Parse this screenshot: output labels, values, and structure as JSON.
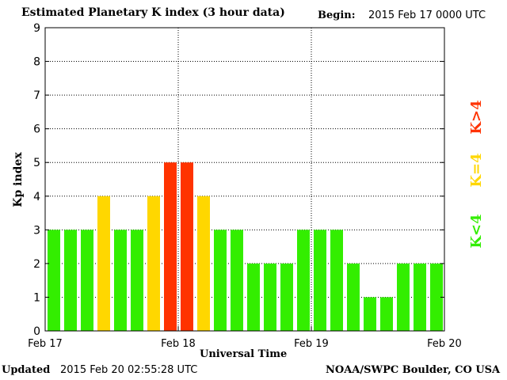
{
  "header": {
    "title": "Estimated Planetary K index (3 hour data)",
    "begin_label": "Begin:",
    "begin_value": "2015 Feb 17 0000 UTC"
  },
  "footer": {
    "updated_label": "Updated",
    "updated_value": "2015 Feb 20 02:55:28 UTC",
    "credit": "NOAA/SWPC Boulder, CO USA"
  },
  "legend": [
    {
      "label": "K>4",
      "color": "#ff3300"
    },
    {
      "label": "K=4",
      "color": "#ffd700"
    },
    {
      "label": "K<4",
      "color": "#33ee00"
    }
  ],
  "chart_data": {
    "type": "bar",
    "title": "Estimated Planetary K index (3 hour data)",
    "xlabel": "Universal Time",
    "ylabel": "Kp index",
    "ylim": [
      0,
      9
    ],
    "yticks": [
      0,
      1,
      2,
      3,
      4,
      5,
      6,
      7,
      8,
      9
    ],
    "xtick_labels": [
      "Feb 17",
      "Feb 18",
      "Feb 19",
      "Feb 20"
    ],
    "grid": true,
    "values": [
      3,
      3,
      3,
      4,
      3,
      3,
      4,
      5,
      5,
      4,
      3,
      3,
      2,
      2,
      2,
      3,
      3,
      3,
      2,
      1,
      1,
      2,
      2,
      2
    ],
    "colors": {
      "low": "#33ee00",
      "storm_threshold": "#ffd700",
      "high": "#ff3300"
    }
  }
}
